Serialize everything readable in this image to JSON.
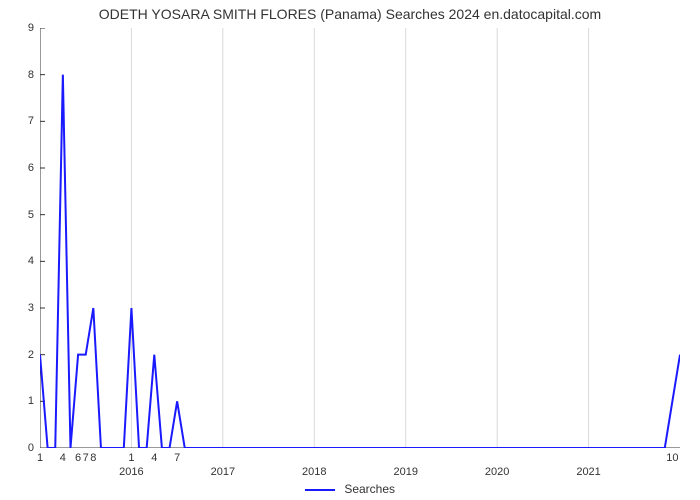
{
  "chart": {
    "type": "line",
    "title": "ODETH YOSARA SMITH FLORES (Panama) Searches 2024 en.datocapital.com",
    "title_fontsize": 14,
    "background_color": "#ffffff",
    "plot_bg": "#ffffff",
    "line_color": "#1a1aff",
    "line_width": 2,
    "grid_color": "#d9d9d9",
    "axis_color": "#333333",
    "ylim": [
      0,
      9
    ],
    "ytick_step": 1,
    "yticks": [
      0,
      1,
      2,
      3,
      4,
      5,
      6,
      7,
      8,
      9
    ],
    "xlim": [
      0,
      84
    ],
    "xticks_minor": [
      {
        "pos": 0,
        "label": "1"
      },
      {
        "pos": 3,
        "label": "4"
      },
      {
        "pos": 5,
        "label": "6"
      },
      {
        "pos": 6,
        "label": "7"
      },
      {
        "pos": 7,
        "label": "8"
      },
      {
        "pos": 12,
        "label": "1"
      },
      {
        "pos": 15,
        "label": "4"
      },
      {
        "pos": 18,
        "label": "7"
      },
      {
        "pos": 83,
        "label": "10"
      }
    ],
    "xticks_year": [
      {
        "pos": 12,
        "label": "2016"
      },
      {
        "pos": 24,
        "label": "2017"
      },
      {
        "pos": 36,
        "label": "2018"
      },
      {
        "pos": 48,
        "label": "2019"
      },
      {
        "pos": 60,
        "label": "2020"
      },
      {
        "pos": 72,
        "label": "2021"
      }
    ],
    "data": [
      {
        "x": 0,
        "y": 2
      },
      {
        "x": 1,
        "y": 0
      },
      {
        "x": 2,
        "y": 0
      },
      {
        "x": 3,
        "y": 8
      },
      {
        "x": 4,
        "y": 0
      },
      {
        "x": 5,
        "y": 2
      },
      {
        "x": 6,
        "y": 2
      },
      {
        "x": 7,
        "y": 3
      },
      {
        "x": 8,
        "y": 0
      },
      {
        "x": 9,
        "y": 0
      },
      {
        "x": 10,
        "y": 0
      },
      {
        "x": 11,
        "y": 0
      },
      {
        "x": 12,
        "y": 3
      },
      {
        "x": 13,
        "y": 0
      },
      {
        "x": 14,
        "y": 0
      },
      {
        "x": 15,
        "y": 2
      },
      {
        "x": 16,
        "y": 0
      },
      {
        "x": 17,
        "y": 0
      },
      {
        "x": 18,
        "y": 1
      },
      {
        "x": 19,
        "y": 0
      },
      {
        "x": 20,
        "y": 0
      },
      {
        "x": 21,
        "y": 0
      },
      {
        "x": 22,
        "y": 0
      },
      {
        "x": 23,
        "y": 0
      },
      {
        "x": 24,
        "y": 0
      },
      {
        "x": 25,
        "y": 0
      },
      {
        "x": 26,
        "y": 0
      },
      {
        "x": 27,
        "y": 0
      },
      {
        "x": 28,
        "y": 0
      },
      {
        "x": 29,
        "y": 0
      },
      {
        "x": 30,
        "y": 0
      },
      {
        "x": 31,
        "y": 0
      },
      {
        "x": 32,
        "y": 0
      },
      {
        "x": 33,
        "y": 0
      },
      {
        "x": 34,
        "y": 0
      },
      {
        "x": 35,
        "y": 0
      },
      {
        "x": 36,
        "y": 0
      },
      {
        "x": 37,
        "y": 0
      },
      {
        "x": 38,
        "y": 0
      },
      {
        "x": 39,
        "y": 0
      },
      {
        "x": 40,
        "y": 0
      },
      {
        "x": 41,
        "y": 0
      },
      {
        "x": 42,
        "y": 0
      },
      {
        "x": 43,
        "y": 0
      },
      {
        "x": 44,
        "y": 0
      },
      {
        "x": 45,
        "y": 0
      },
      {
        "x": 46,
        "y": 0
      },
      {
        "x": 47,
        "y": 0
      },
      {
        "x": 48,
        "y": 0
      },
      {
        "x": 49,
        "y": 0
      },
      {
        "x": 50,
        "y": 0
      },
      {
        "x": 51,
        "y": 0
      },
      {
        "x": 52,
        "y": 0
      },
      {
        "x": 53,
        "y": 0
      },
      {
        "x": 54,
        "y": 0
      },
      {
        "x": 55,
        "y": 0
      },
      {
        "x": 56,
        "y": 0
      },
      {
        "x": 57,
        "y": 0
      },
      {
        "x": 58,
        "y": 0
      },
      {
        "x": 59,
        "y": 0
      },
      {
        "x": 60,
        "y": 0
      },
      {
        "x": 61,
        "y": 0
      },
      {
        "x": 62,
        "y": 0
      },
      {
        "x": 63,
        "y": 0
      },
      {
        "x": 64,
        "y": 0
      },
      {
        "x": 65,
        "y": 0
      },
      {
        "x": 66,
        "y": 0
      },
      {
        "x": 67,
        "y": 0
      },
      {
        "x": 68,
        "y": 0
      },
      {
        "x": 69,
        "y": 0
      },
      {
        "x": 70,
        "y": 0
      },
      {
        "x": 71,
        "y": 0
      },
      {
        "x": 72,
        "y": 0
      },
      {
        "x": 73,
        "y": 0
      },
      {
        "x": 74,
        "y": 0
      },
      {
        "x": 75,
        "y": 0
      },
      {
        "x": 76,
        "y": 0
      },
      {
        "x": 77,
        "y": 0
      },
      {
        "x": 78,
        "y": 0
      },
      {
        "x": 79,
        "y": 0
      },
      {
        "x": 80,
        "y": 0
      },
      {
        "x": 81,
        "y": 0
      },
      {
        "x": 82,
        "y": 0
      },
      {
        "x": 83,
        "y": 1
      },
      {
        "x": 84,
        "y": 2
      }
    ],
    "legend": {
      "label": "Searches",
      "color": "#1a1aff"
    }
  }
}
